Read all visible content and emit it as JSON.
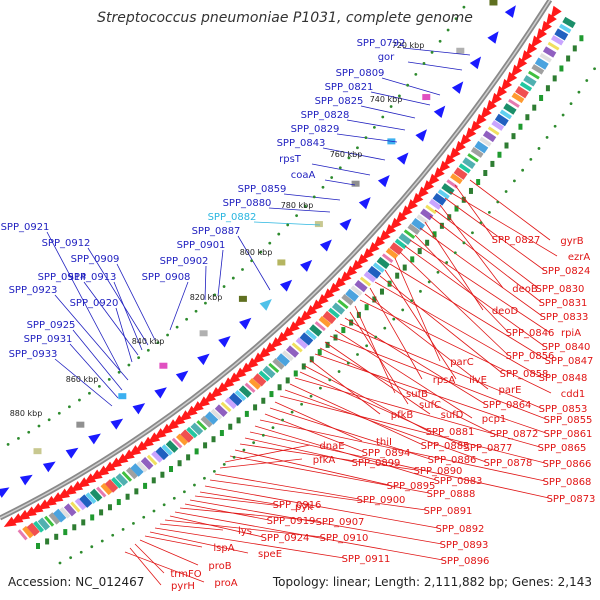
{
  "title": "Streptococcus pneumoniae P1031, complete genome",
  "accession": "Accession: NC_012467",
  "topology": "Topology: linear; Length: 2,111,882 bp; Genes: 2,143",
  "ticks": [
    "720 kbp",
    "740 kbp",
    "760 kbp",
    "780 kbp",
    "800 kbp",
    "820 kbp",
    "840 kbp",
    "860 kbp",
    "880 kbp"
  ],
  "colors": {
    "plus_label": "#1f1fbf",
    "minus_label": "#e01515",
    "highlight_label": "#2ab6e0",
    "plus_arrow": "#1a1aff",
    "minus_arrow": "#ff1a1a",
    "backbone": "#808080",
    "tick_dot": "#2e8b2e"
  },
  "genes_plus": [
    "SPP_0792",
    "gor",
    "SPP_0809",
    "SPP_0821",
    "SPP_0825",
    "SPP_0828",
    "SPP_0829",
    "SPP_0843",
    "rpsT",
    "coaA",
    "SPP_0859",
    "SPP_0880",
    "SPP_0882",
    "SPP_0887",
    "SPP_0901",
    "SPP_0902",
    "SPP_0908",
    "SPP_0909",
    "SPP_0912",
    "SPP_0913",
    "SPP_0914",
    "SPP_0920",
    "SPP_0921",
    "SPP_0923",
    "SPP_0925",
    "SPP_0931",
    "SPP_0933"
  ],
  "genes_minus": [
    "gyrB",
    "SPP_0827",
    "ezrA",
    "SPP_0824",
    "deoB",
    "SPP_0830",
    "SPP_0831",
    "deoD",
    "SPP_0833",
    "SPP_0846",
    "rpiA",
    "SPP_0840",
    "SPP_0856",
    "parC",
    "SPP_0847",
    "ilvE",
    "SPP_0858",
    "SPP_0848",
    "rpsA",
    "parE",
    "cdd1",
    "sufB",
    "sufC",
    "SPP_0864",
    "SPP_0853",
    "pcp1",
    "SPP_0855",
    "sufD",
    "SPP_0872",
    "SPP_0861",
    "pfkB",
    "SPP_0881",
    "SPP_0877",
    "SPP_0865",
    "SPP_0885",
    "SPP_0878",
    "SPP_0866",
    "thiI",
    "SPP_0886",
    "SPP_0894",
    "SPP_0868",
    "SPP_0883",
    "SPP_0873",
    "SPP_0899",
    "SPP_0890",
    "SPP_0895",
    "SPP_0888",
    "dnaE",
    "pfkA",
    "SPP_0900",
    "SPP_0891",
    "SPP_0892",
    "SPP_0916",
    "pyk",
    "SPP_0893",
    "SPP_0919",
    "SPP_0907",
    "SPP_0896",
    "SPP_0924",
    "SPP_0910",
    "lys",
    "SPP_0911",
    "speE",
    "lspA",
    "proB",
    "trmFO",
    "pyrH",
    "proA"
  ]
}
